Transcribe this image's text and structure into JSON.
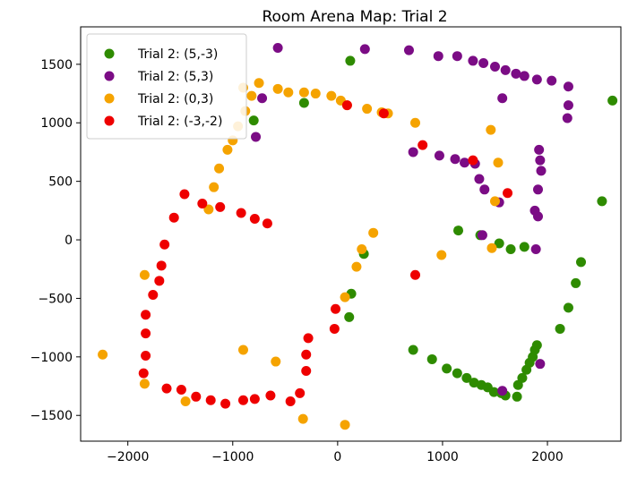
{
  "chart_data": {
    "type": "scatter",
    "title": "Room Arena Map: Trial 2",
    "xlabel": "",
    "ylabel": "",
    "xlim": [
      -2450,
      2700
    ],
    "ylim": [
      -1720,
      1820
    ],
    "xticks": [
      -2000,
      -1000,
      0,
      1000,
      2000
    ],
    "xtick_labels": [
      "−2000",
      "−1000",
      "0",
      "1000",
      "2000"
    ],
    "yticks": [
      -1500,
      -1000,
      -500,
      0,
      500,
      1000,
      1500
    ],
    "ytick_labels": [
      "−1500",
      "−1000",
      "−500",
      "0",
      "500",
      "1000",
      "1500"
    ],
    "grid": false,
    "legend": "top-left",
    "series": [
      {
        "name": "Trial 2: (5,-3)",
        "color": "#2e8b00",
        "points": [
          [
            -800,
            1020
          ],
          [
            -320,
            1170
          ],
          [
            120,
            1530
          ],
          [
            250,
            -120
          ],
          [
            130,
            -460
          ],
          [
            110,
            -660
          ],
          [
            720,
            -940
          ],
          [
            900,
            -1020
          ],
          [
            1040,
            -1100
          ],
          [
            1140,
            -1140
          ],
          [
            1230,
            -1180
          ],
          [
            1300,
            -1220
          ],
          [
            1370,
            -1240
          ],
          [
            1430,
            -1260
          ],
          [
            1490,
            -1300
          ],
          [
            1560,
            -1310
          ],
          [
            1600,
            -1330
          ],
          [
            1710,
            -1340
          ],
          [
            1720,
            -1240
          ],
          [
            1760,
            -1180
          ],
          [
            1800,
            -1110
          ],
          [
            1830,
            -1050
          ],
          [
            1860,
            -1000
          ],
          [
            1880,
            -940
          ],
          [
            1900,
            -900
          ],
          [
            2120,
            -760
          ],
          [
            2200,
            -580
          ],
          [
            2270,
            -370
          ],
          [
            2320,
            -190
          ],
          [
            2520,
            330
          ],
          [
            2620,
            1190
          ],
          [
            1150,
            80
          ],
          [
            1360,
            40
          ],
          [
            1540,
            -30
          ],
          [
            1650,
            -80
          ],
          [
            1780,
            -60
          ]
        ]
      },
      {
        "name": "Trial 2: (5,3)",
        "color": "#7b0c85",
        "points": [
          [
            -570,
            1640
          ],
          [
            260,
            1630
          ],
          [
            680,
            1620
          ],
          [
            960,
            1570
          ],
          [
            1140,
            1570
          ],
          [
            1290,
            1530
          ],
          [
            1390,
            1510
          ],
          [
            1500,
            1480
          ],
          [
            1600,
            1450
          ],
          [
            1700,
            1420
          ],
          [
            1780,
            1400
          ],
          [
            1900,
            1370
          ],
          [
            2040,
            1360
          ],
          [
            2200,
            1310
          ],
          [
            2200,
            1150
          ],
          [
            2190,
            1040
          ],
          [
            1570,
            1210
          ],
          [
            -780,
            880
          ],
          [
            -720,
            1210
          ],
          [
            720,
            750
          ],
          [
            970,
            720
          ],
          [
            1120,
            690
          ],
          [
            1210,
            660
          ],
          [
            1310,
            650
          ],
          [
            1350,
            520
          ],
          [
            1400,
            430
          ],
          [
            1540,
            320
          ],
          [
            1920,
            770
          ],
          [
            1930,
            680
          ],
          [
            1940,
            590
          ],
          [
            1910,
            430
          ],
          [
            1880,
            250
          ],
          [
            1910,
            200
          ],
          [
            1890,
            -80
          ],
          [
            1380,
            40
          ],
          [
            1930,
            -1060
          ],
          [
            1570,
            -1290
          ]
        ]
      },
      {
        "name": "Trial 2: (0,3)",
        "color": "#f5a300",
        "points": [
          [
            -750,
            1340
          ],
          [
            -820,
            1230
          ],
          [
            -880,
            1100
          ],
          [
            -950,
            970
          ],
          [
            -1000,
            850
          ],
          [
            -1050,
            770
          ],
          [
            -1130,
            610
          ],
          [
            -1180,
            450
          ],
          [
            -1230,
            260
          ],
          [
            -900,
            1300
          ],
          [
            -570,
            1290
          ],
          [
            -470,
            1260
          ],
          [
            -320,
            1260
          ],
          [
            -210,
            1250
          ],
          [
            -60,
            1230
          ],
          [
            30,
            1190
          ],
          [
            90,
            1150
          ],
          [
            280,
            1120
          ],
          [
            420,
            1090
          ],
          [
            480,
            1080
          ],
          [
            740,
            1000
          ],
          [
            1460,
            940
          ],
          [
            1530,
            660
          ],
          [
            1500,
            330
          ],
          [
            1470,
            -70
          ],
          [
            990,
            -130
          ],
          [
            340,
            60
          ],
          [
            230,
            -80
          ],
          [
            180,
            -230
          ],
          [
            70,
            -490
          ],
          [
            -1840,
            -300
          ],
          [
            -2240,
            -980
          ],
          [
            -1840,
            -1230
          ],
          [
            -1450,
            -1380
          ],
          [
            -900,
            -940
          ],
          [
            -590,
            -1040
          ],
          [
            -330,
            -1530
          ],
          [
            70,
            -1580
          ]
        ]
      },
      {
        "name": "Trial 2: (-3,-2)",
        "color": "#ee0000",
        "points": [
          [
            -1460,
            390
          ],
          [
            -1560,
            190
          ],
          [
            -1290,
            310
          ],
          [
            -1120,
            280
          ],
          [
            -920,
            230
          ],
          [
            -790,
            180
          ],
          [
            -670,
            140
          ],
          [
            -1650,
            -40
          ],
          [
            -1680,
            -220
          ],
          [
            -1700,
            -350
          ],
          [
            -1760,
            -470
          ],
          [
            -1830,
            -640
          ],
          [
            -1830,
            -800
          ],
          [
            -1830,
            -990
          ],
          [
            -1850,
            -1140
          ],
          [
            -1630,
            -1270
          ],
          [
            -1490,
            -1280
          ],
          [
            -1350,
            -1340
          ],
          [
            -1210,
            -1370
          ],
          [
            -1070,
            -1400
          ],
          [
            -900,
            -1370
          ],
          [
            -790,
            -1360
          ],
          [
            -640,
            -1330
          ],
          [
            -450,
            -1380
          ],
          [
            -360,
            -1310
          ],
          [
            -300,
            -1120
          ],
          [
            -300,
            -980
          ],
          [
            -280,
            -840
          ],
          [
            -30,
            -760
          ],
          [
            -20,
            -590
          ],
          [
            90,
            1150
          ],
          [
            440,
            1080
          ],
          [
            810,
            810
          ],
          [
            1290,
            680
          ],
          [
            1620,
            400
          ],
          [
            740,
            -300
          ]
        ]
      }
    ]
  }
}
